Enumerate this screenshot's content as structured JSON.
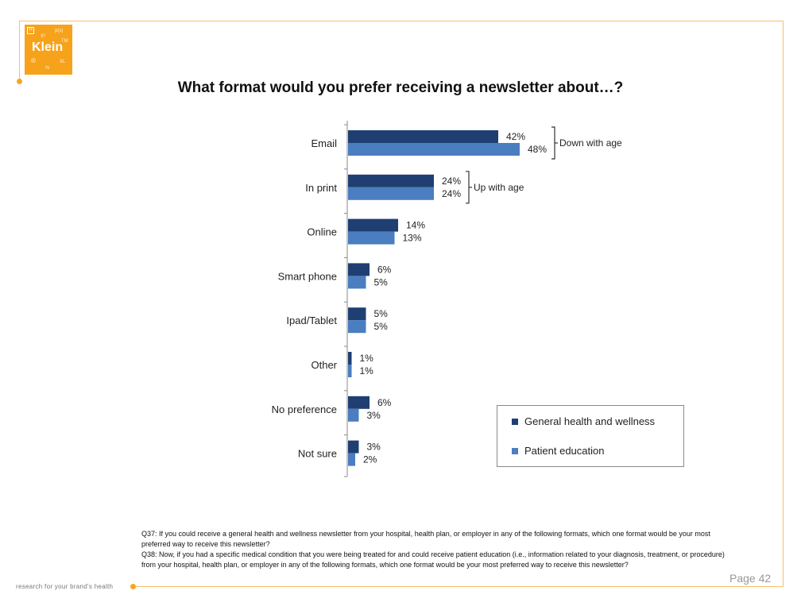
{
  "logo": {
    "name": "Klein",
    "box_letter": "H",
    "sup1": "p(s)",
    "sup2": "X²",
    "sup3": "TM",
    "reg": "®",
    "sym": "%",
    "sub": "XL"
  },
  "tagline": "research for your brand's health",
  "page": "Page 42",
  "chart_data": {
    "type": "bar",
    "orientation": "horizontal",
    "title": "What format would you prefer receiving a newsletter about…?",
    "categories": [
      "Email",
      "In print",
      "Online",
      "Smart phone",
      "Ipad/Tablet",
      "Other",
      "No preference",
      "Not sure"
    ],
    "series": [
      {
        "name": "General health and wellness",
        "values": [
          42,
          24,
          14,
          6,
          5,
          1,
          6,
          3
        ],
        "labels": [
          "42%",
          "24%",
          "14%",
          "6%",
          "5%",
          "1%",
          "6%",
          "3%"
        ],
        "color": "#1f3f73"
      },
      {
        "name": "Patient education",
        "values": [
          48,
          24,
          13,
          5,
          5,
          1,
          3,
          2
        ],
        "labels": [
          "48%",
          "24%",
          "13%",
          "5%",
          "5%",
          "1%",
          "3%",
          "2%"
        ],
        "color": "#4a7ec0"
      }
    ],
    "annotations": [
      {
        "text": "Down with age",
        "category": "Email"
      },
      {
        "text": "Up with age",
        "category": "In print"
      }
    ],
    "legend_position": "bottom-right",
    "grid": false
  },
  "footnote": {
    "q37": "Q37: If you could receive a general health and wellness newsletter from your hospital, health plan, or employer in any of the following formats, which one format would be your most preferred way to receive this newsletter?",
    "q38": "Q38: Now, if you had a specific medical condition that you were being treated for and could receive patient education (i.e., information related to your diagnosis, treatment, or procedure) from your hospital, health plan, or employer in any of the following formats, which one format would be your most preferred way to receive this newsletter?"
  }
}
